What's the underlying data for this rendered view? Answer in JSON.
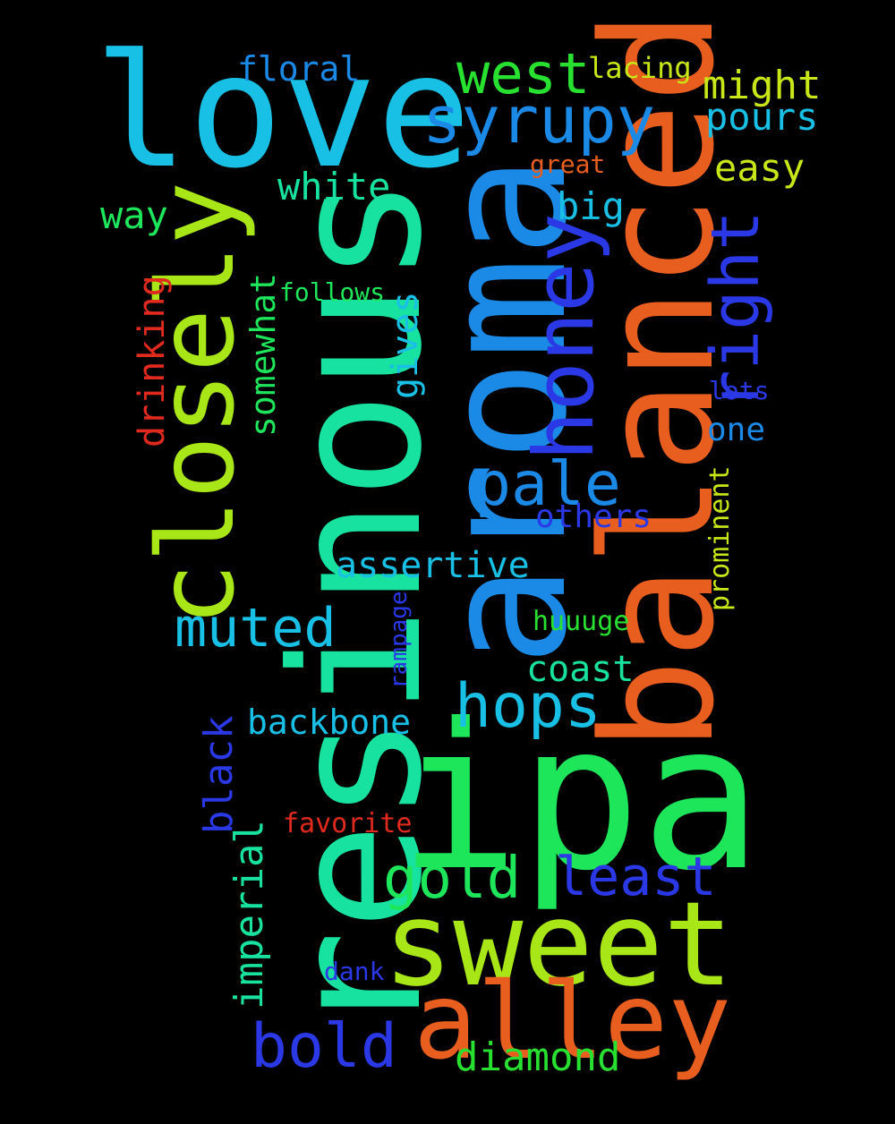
{
  "words": {
    "resinous": "resinous",
    "ipa": "ipa",
    "aroma": "aroma",
    "balanced": "balanced",
    "love": "love",
    "closely": "closely",
    "sweet": "sweet",
    "alley": "alley",
    "honey": "honey",
    "syrupy": "syrupy",
    "west": "west",
    "pale": "pale",
    "hops": "hops",
    "gold": "gold",
    "least": "least",
    "bold": "bold",
    "muted": "muted",
    "right": "right",
    "diamond": "diamond",
    "might": "might",
    "pours": "pours",
    "easy": "easy",
    "floral": "floral",
    "lacing": "lacing",
    "white": "white",
    "big": "big",
    "way": "way",
    "assertive": "assertive",
    "backbone": "backbone",
    "coast": "coast",
    "others": "others",
    "imperial": "imperial",
    "black": "black",
    "somewhat": "somewhat",
    "gives": "gives",
    "drinking": "drinking",
    "one": "one",
    "lots": "lots",
    "follows": "follows",
    "great": "great",
    "huuuge": "huuuge",
    "rampage": "rampage",
    "favorite": "favorite",
    "prominent": "prominent",
    "dank": "dank"
  },
  "colors": {
    "background": "#000000",
    "teal_green": "#18e2a0",
    "green": "#1ee65a",
    "blue": "#1a8ae6",
    "orange": "#e85e1e",
    "cyan": "#18c0e6",
    "lime": "#a8e618",
    "indigo": "#2a38e6",
    "red": "#e02a1e",
    "yellow_green": "#c8e618",
    "bright_green": "#28e030"
  }
}
